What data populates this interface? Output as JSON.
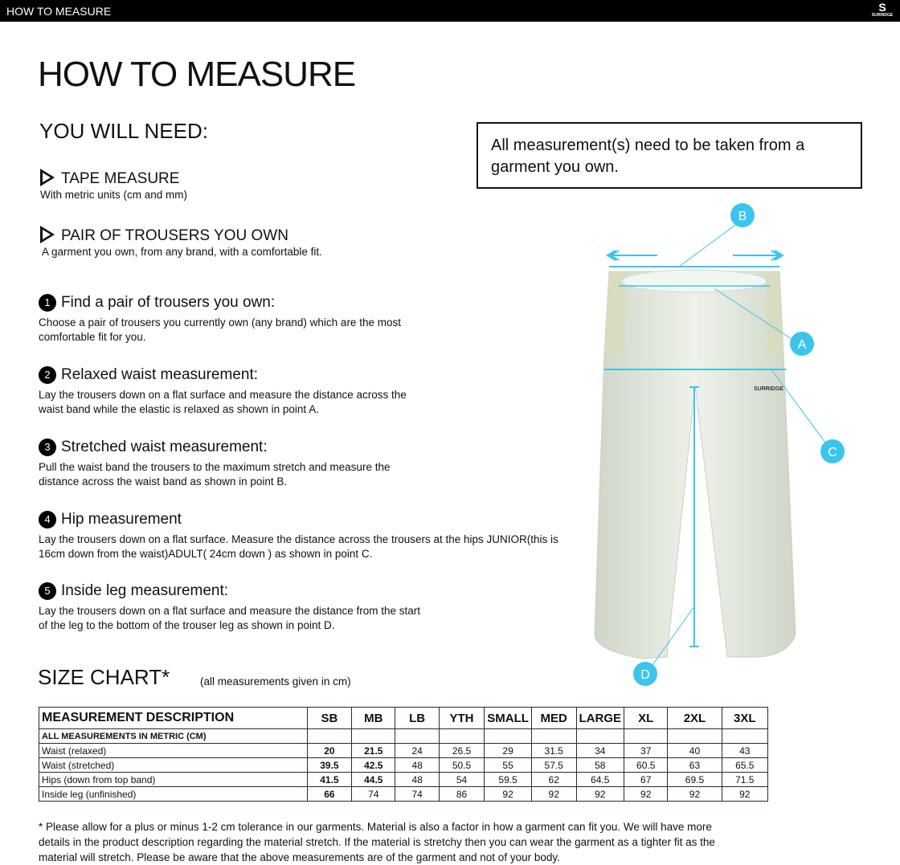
{
  "topbar": {
    "title": "HOW TO MEASURE",
    "logo": "SURRIDGE"
  },
  "page_title": "HOW TO MEASURE",
  "you_will_need": {
    "heading": "YOU WILL NEED:",
    "items": [
      {
        "title": "TAPE MEASURE",
        "desc": "With metric units (cm and mm)"
      },
      {
        "title": "PAIR OF TROUSERS YOU OWN",
        "desc": "A garment you own, from any brand, with a comfortable fit."
      }
    ]
  },
  "note": "All measurement(s) need to be taken from a garment you own.",
  "steps": [
    {
      "n": "1",
      "title": "Find a pair of trousers you own:",
      "desc": "Choose a pair of trousers you currently own (any brand) which are the most comfortable fit for you."
    },
    {
      "n": "2",
      "title": "Relaxed waist measurement:",
      "desc": "Lay the trousers down on a flat surface and measure the distance across the waist band while the elastic is relaxed as shown in point A."
    },
    {
      "n": "3",
      "title": "Stretched waist measurement:",
      "desc": "Pull the waist band the trousers to the maximum stretch and measure the distance across the waist band as shown in point B."
    },
    {
      "n": "4",
      "title": "Hip measurement",
      "desc": "Lay the trousers down on a flat surface. Measure the distance across the trousers at the hips JUNIOR(this is 16cm down from the waist)ADULT( 24cm down ) as shown in point C."
    },
    {
      "n": "5",
      "title": "Inside leg measurement:",
      "desc": "Lay the trousers down on a flat surface and measure the distance from the start of the leg to the bottom of the trouser leg as shown in point D."
    }
  ],
  "diagram": {
    "labels": [
      "A",
      "B",
      "C",
      "D"
    ],
    "accent": "#3cc4ec",
    "garment_logo": "SURRIDGE"
  },
  "size_chart": {
    "title": "SIZE CHART*",
    "subtitle": "(all measurements given in cm)",
    "header": [
      "MEASUREMENT DESCRIPTION",
      "SB",
      "MB",
      "LB",
      "YTH",
      "SMALL",
      "MED",
      "LARGE",
      "XL",
      "2XL",
      "3XL"
    ],
    "section": "ALL MEASUREMENTS IN METRIC (CM)",
    "rows": [
      {
        "label": "Waist (relaxed)",
        "values": [
          "20",
          "21.5",
          "24",
          "26.5",
          "29",
          "31.5",
          "34",
          "37",
          "40",
          "43"
        ]
      },
      {
        "label": "Waist (stretched)",
        "values": [
          "39.5",
          "42.5",
          "48",
          "50.5",
          "55",
          "57.5",
          "58",
          "60.5",
          "63",
          "65.5"
        ]
      },
      {
        "label": "Hips (down from top band)",
        "values": [
          "41.5",
          "44.5",
          "48",
          "54",
          "59.5",
          "62",
          "64.5",
          "67",
          "69.5",
          "71.5"
        ]
      },
      {
        "label": "Inside leg (unfinished)",
        "values": [
          "66",
          "74",
          "74",
          "86",
          "92",
          "92",
          "92",
          "92",
          "92",
          "92"
        ]
      }
    ]
  },
  "footnote": "* Please allow for a plus or minus 1-2 cm tolerance in our garments. Material is also a factor in how a garment can fit you. We will have more details in the product description regarding the material stretch.  If the material is stretchy then you can wear the garment as a tighter fit as the material will stretch.  Please be aware that the above measurements are of the garment and not of your body."
}
